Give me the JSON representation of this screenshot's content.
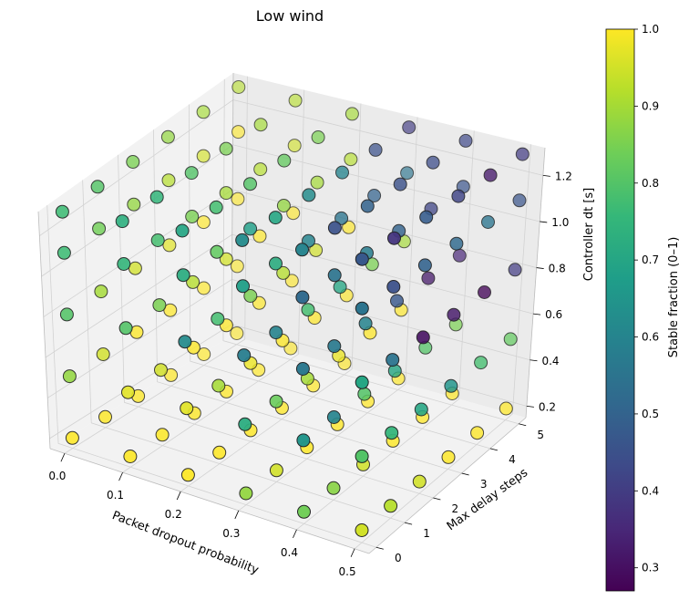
{
  "chart_data": {
    "type": "scatter",
    "title": "Low wind",
    "xlabel": "Packet dropout probability",
    "ylabel": "Max delay steps",
    "zlabel": "Controller dt [s]",
    "x_ticks": [
      "0.0",
      "0.1",
      "0.2",
      "0.3",
      "0.4",
      "0.5"
    ],
    "y_ticks": [
      "0",
      "1",
      "2",
      "3",
      "4",
      "5"
    ],
    "z_ticks": [
      "0.2",
      "0.4",
      "0.6",
      "0.8",
      "1.0",
      "1.2"
    ],
    "colorbar": {
      "label": "Stable fraction (0–1)",
      "ticks": [
        "0.3",
        "0.4",
        "0.5",
        "0.6",
        "0.7",
        "0.8",
        "0.9",
        "1.0"
      ],
      "range": [
        0.27,
        1.0
      ],
      "colormap": "viridis"
    },
    "grid": true,
    "axes_3d": true,
    "x_values": [
      0.0,
      0.1,
      0.2,
      0.3,
      0.4,
      0.5
    ],
    "y_values": [
      0,
      1,
      2,
      3,
      4,
      5
    ],
    "z_values": [
      0.2,
      0.5,
      0.8,
      1.1,
      1.3
    ],
    "stable_fraction": [
      [
        [
          1.0,
          0.88,
          0.8,
          0.77,
          0.77
        ],
        [
          1.0,
          0.95,
          0.9,
          0.84,
          0.8
        ],
        [
          1.0,
          1.0,
          0.95,
          0.88,
          0.85
        ],
        [
          1.0,
          1.0,
          0.97,
          0.92,
          0.88
        ],
        [
          1.0,
          1.0,
          1.0,
          0.95,
          0.9
        ],
        [
          1.0,
          1.0,
          1.0,
          1.0,
          0.92
        ]
      ],
      [
        [
          1.0,
          0.97,
          0.8,
          0.75,
          0.73
        ],
        [
          1.0,
          0.95,
          0.85,
          0.78,
          0.75
        ],
        [
          1.0,
          1.0,
          0.92,
          0.85,
          0.8
        ],
        [
          1.0,
          1.0,
          0.95,
          0.9,
          0.85
        ],
        [
          1.0,
          1.0,
          1.0,
          0.92,
          0.9
        ],
        [
          1.0,
          1.0,
          1.0,
          0.95,
          0.92
        ]
      ],
      [
        [
          1.0,
          0.97,
          0.62,
          0.72,
          0.7
        ],
        [
          1.0,
          0.9,
          0.78,
          0.82,
          0.78
        ],
        [
          1.0,
          0.98,
          0.85,
          0.68,
          0.8
        ],
        [
          1.0,
          1.0,
          0.92,
          0.88,
          0.82
        ],
        [
          1.0,
          1.0,
          0.95,
          0.9,
          0.85
        ],
        [
          1.0,
          1.0,
          1.0,
          0.92,
          0.9
        ]
      ],
      [
        [
          0.88,
          0.72,
          0.58,
          0.68,
          0.62
        ],
        [
          0.95,
          0.83,
          0.6,
          0.72,
          0.7
        ],
        [
          1.0,
          0.9,
          0.78,
          0.6,
          0.62
        ],
        [
          1.0,
          0.98,
          0.7,
          0.55,
          0.6
        ],
        [
          1.0,
          1.0,
          0.85,
          0.5,
          0.45
        ],
        [
          1.0,
          1.0,
          0.9,
          0.55,
          0.4
        ]
      ],
      [
        [
          0.84,
          0.65,
          0.56,
          0.52,
          0.6
        ],
        [
          0.87,
          0.6,
          0.57,
          0.55,
          0.45
        ],
        [
          0.95,
          0.8,
          0.6,
          0.58,
          0.5
        ],
        [
          1.0,
          0.7,
          0.47,
          0.5,
          0.45
        ],
        [
          1.0,
          0.8,
          0.32,
          0.42,
          0.44
        ],
        [
          1.0,
          0.85,
          0.35,
          0.46,
          0.43
        ]
      ],
      [
        [
          0.95,
          0.8,
          0.7,
          0.55,
          0.47
        ],
        [
          0.92,
          0.75,
          0.55,
          0.45,
          0.38
        ],
        [
          0.95,
          0.7,
          0.3,
          0.5,
          0.48
        ],
        [
          1.0,
          0.65,
          0.32,
          0.52,
          0.42
        ],
        [
          1.0,
          0.78,
          0.28,
          0.55,
          0.32
        ],
        [
          1.0,
          0.82,
          0.4,
          0.46,
          0.4
        ]
      ]
    ]
  }
}
